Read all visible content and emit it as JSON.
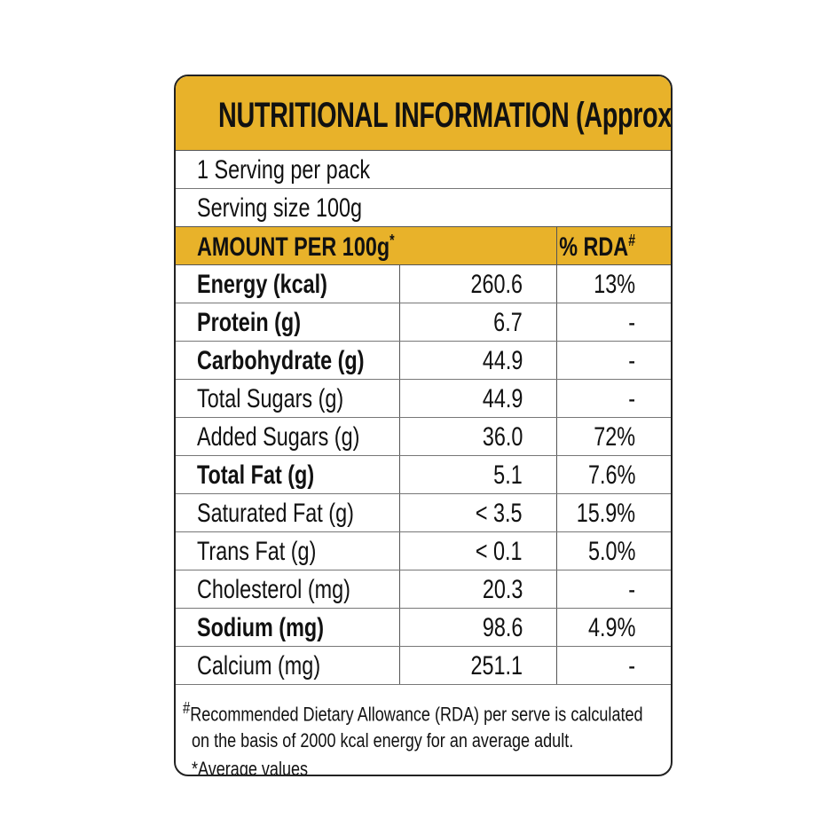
{
  "title": "NUTRITIONAL INFORMATION (Approx)",
  "servings_per_pack": "1 Serving per pack",
  "serving_size": "Serving size 100g",
  "header": {
    "amount_label": "AMOUNT PER 100g",
    "amount_mark": "*",
    "rda_label": "% RDA",
    "rda_mark": "#"
  },
  "rows": [
    {
      "name": "Energy (kcal)",
      "value": "260.6",
      "rda": "13%",
      "bold": true
    },
    {
      "name": "Protein (g)",
      "value": "6.7",
      "rda": "-",
      "bold": true
    },
    {
      "name": "Carbohydrate (g)",
      "value": "44.9",
      "rda": "-",
      "bold": true
    },
    {
      "name": "Total Sugars (g)",
      "value": "44.9",
      "rda": "-",
      "bold": false
    },
    {
      "name": "Added Sugars (g)",
      "value": "36.0",
      "rda": "72%",
      "bold": false
    },
    {
      "name": "Total Fat (g)",
      "value": "5.1",
      "rda": "7.6%",
      "bold": true
    },
    {
      "name": "Saturated Fat (g)",
      "value": "< 3.5",
      "rda": "15.9%",
      "bold": false
    },
    {
      "name": "Trans Fat (g)",
      "value": "< 0.1",
      "rda": "5.0%",
      "bold": false
    },
    {
      "name": "Cholesterol (mg)",
      "value": "20.3",
      "rda": "-",
      "bold": false
    },
    {
      "name": "Sodium (mg)",
      "value": "98.6",
      "rda": "4.9%",
      "bold": true
    },
    {
      "name": "Calcium (mg)",
      "value": "251.1",
      "rda": "-",
      "bold": false
    }
  ],
  "footer": {
    "mark": "#",
    "line1": "Recommended Dietary Allowance (RDA) per serve is calculated",
    "line2": "on the basis  of 2000 kcal energy for an average adult.",
    "line3": "*Average values"
  },
  "colors": {
    "accent": "#E8B22A",
    "border": "#222222"
  }
}
